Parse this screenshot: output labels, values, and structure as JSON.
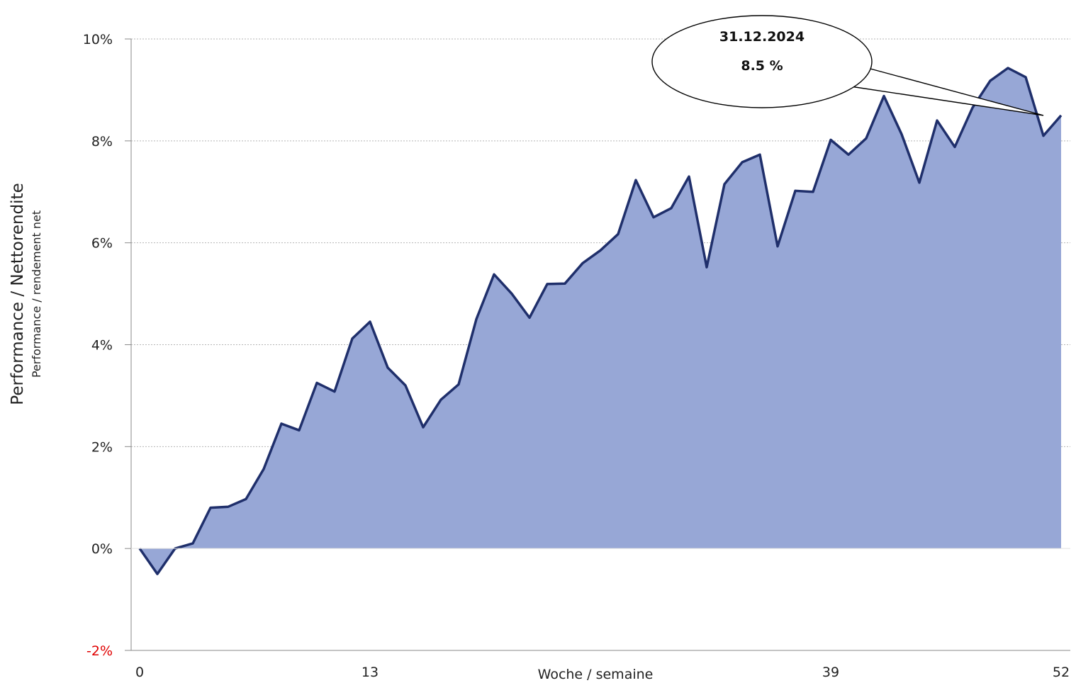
{
  "chart_data": {
    "type": "area",
    "xlabel": "Woche / semaine",
    "ylabel": "Performance / Nettorendite",
    "ylabel_sub": "Performance / rendement net",
    "xlim": [
      0,
      52
    ],
    "ylim": [
      -2,
      10
    ],
    "x_ticks": [
      0,
      13,
      39,
      52
    ],
    "y_ticks": [
      {
        "value": -2,
        "label": "-2%"
      },
      {
        "value": 0,
        "label": "0%"
      },
      {
        "value": 2,
        "label": "2%"
      },
      {
        "value": 4,
        "label": "4%"
      },
      {
        "value": 6,
        "label": "6%"
      },
      {
        "value": 8,
        "label": "8%"
      },
      {
        "value": 10,
        "label": "10%"
      }
    ],
    "grid": "horizontal-dotted",
    "colors": {
      "fill": "#97a7d6",
      "line": "#1f2f6b",
      "negative_tick": "#e00000"
    },
    "series": [
      {
        "x": [
          0,
          1,
          2,
          3,
          4,
          5,
          6,
          7,
          8,
          9,
          10,
          11,
          12,
          13,
          14,
          15,
          16,
          17,
          18,
          19,
          20,
          21,
          22,
          23,
          24,
          25,
          26,
          27,
          28,
          29,
          30,
          31,
          32,
          33,
          34,
          35,
          36,
          37,
          38,
          39,
          40,
          41,
          42,
          43,
          44,
          45,
          46,
          47,
          48,
          49,
          50,
          51,
          52
        ],
        "values": [
          0.0,
          -0.5,
          0.0,
          0.1,
          0.8,
          0.82,
          0.97,
          1.56,
          2.45,
          2.32,
          3.25,
          3.08,
          4.12,
          4.45,
          3.55,
          3.2,
          2.38,
          2.92,
          3.22,
          4.5,
          5.38,
          5.0,
          4.53,
          5.19,
          5.2,
          5.6,
          5.85,
          6.17,
          7.23,
          6.5,
          6.68,
          7.3,
          5.52,
          7.15,
          7.58,
          7.73,
          5.93,
          7.02,
          7.0,
          8.02,
          7.73,
          8.05,
          8.88,
          8.13,
          7.18,
          8.4,
          7.88,
          8.65,
          9.18,
          9.43,
          9.25,
          8.1,
          8.5
        ]
      }
    ],
    "annotation": {
      "date": "31.12.2024",
      "value_label": "8.5 %",
      "x": 52,
      "y": 8.5
    }
  }
}
